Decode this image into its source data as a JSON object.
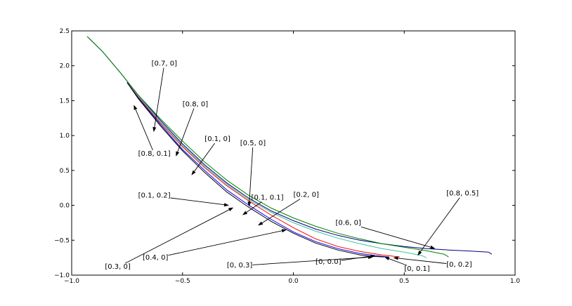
{
  "chart_data": {
    "type": "line",
    "title": "",
    "xlabel": "",
    "ylabel": "",
    "xlim": [
      -1.0,
      1.0
    ],
    "ylim": [
      -1.0,
      2.5
    ],
    "x_ticks": [
      -1.0,
      -0.5,
      0.0,
      0.5,
      1.0
    ],
    "x_tick_labels": [
      "−1.0",
      "−0.5",
      "0.0",
      "0.5",
      "1.0"
    ],
    "y_ticks": [
      -1.0,
      -0.5,
      0.0,
      0.5,
      1.0,
      1.5,
      2.0,
      2.5
    ],
    "y_tick_labels": [
      "−1.0",
      "−0.5",
      "0.0",
      "0.5",
      "1.0",
      "1.5",
      "2.0",
      "2.5"
    ],
    "grid": false,
    "series": [
      {
        "color": "#000080",
        "x": [
          -0.93,
          -0.86,
          -0.78,
          -0.7,
          -0.6,
          -0.5,
          -0.4,
          -0.3,
          -0.2,
          -0.1,
          0.0,
          0.1,
          0.2,
          0.3,
          0.4,
          0.5,
          0.6,
          0.7,
          0.8,
          0.88,
          0.895
        ],
        "y": [
          2.42,
          2.2,
          1.9,
          1.58,
          1.22,
          0.88,
          0.58,
          0.32,
          0.1,
          -0.08,
          -0.22,
          -0.34,
          -0.43,
          -0.5,
          -0.55,
          -0.59,
          -0.62,
          -0.64,
          -0.655,
          -0.67,
          -0.7
        ]
      },
      {
        "color": "#008000",
        "x": [
          -0.93,
          -0.86,
          -0.78,
          -0.7,
          -0.6,
          -0.5,
          -0.4,
          -0.3,
          -0.2,
          -0.1,
          0.0,
          0.1,
          0.2,
          0.3,
          0.4,
          0.5,
          0.6,
          0.68,
          0.7
        ],
        "y": [
          2.42,
          2.2,
          1.9,
          1.58,
          1.24,
          0.92,
          0.62,
          0.36,
          0.14,
          -0.04,
          -0.18,
          -0.3,
          -0.4,
          -0.48,
          -0.55,
          -0.6,
          -0.65,
          -0.7,
          -0.74
        ]
      },
      {
        "color": "#40c0a0",
        "x": [
          -0.75,
          -0.7,
          -0.6,
          -0.5,
          -0.4,
          -0.3,
          -0.2,
          -0.1,
          0.0,
          0.1,
          0.2,
          0.3,
          0.4,
          0.5,
          0.58,
          0.6
        ],
        "y": [
          1.76,
          1.56,
          1.2,
          0.86,
          0.56,
          0.3,
          0.08,
          -0.1,
          -0.25,
          -0.37,
          -0.47,
          -0.55,
          -0.62,
          -0.67,
          -0.72,
          -0.75
        ]
      },
      {
        "color": "#ff0000",
        "x": [
          -0.75,
          -0.7,
          -0.6,
          -0.5,
          -0.4,
          -0.3,
          -0.2,
          -0.1,
          0.0,
          0.1,
          0.2,
          0.3,
          0.4,
          0.48
        ],
        "y": [
          1.76,
          1.55,
          1.18,
          0.84,
          0.54,
          0.28,
          0.06,
          -0.14,
          -0.32,
          -0.48,
          -0.59,
          -0.66,
          -0.71,
          -0.74
        ]
      },
      {
        "color": "#0000ff",
        "x": [
          -0.75,
          -0.7,
          -0.6,
          -0.5,
          -0.4,
          -0.3,
          -0.2,
          -0.1,
          0.0,
          0.1,
          0.2,
          0.3,
          0.4,
          0.43
        ],
        "y": [
          1.76,
          1.54,
          1.16,
          0.8,
          0.5,
          0.22,
          0.0,
          -0.2,
          -0.38,
          -0.52,
          -0.62,
          -0.69,
          -0.73,
          -0.74
        ]
      },
      {
        "color": "#000000",
        "x": [
          -0.75,
          -0.7,
          -0.6,
          -0.5,
          -0.4,
          -0.3,
          -0.2,
          -0.1,
          0.0,
          0.1,
          0.2,
          0.3,
          0.35,
          0.41
        ],
        "y": [
          1.76,
          1.53,
          1.14,
          0.78,
          0.47,
          0.19,
          -0.03,
          -0.23,
          -0.4,
          -0.54,
          -0.64,
          -0.71,
          -0.73,
          -0.74
        ]
      }
    ],
    "annotations": [
      {
        "text": "[0.7, 0]",
        "label_x": -0.64,
        "label_y": 2.0,
        "tip_x": -0.63,
        "tip_y": 1.05
      },
      {
        "text": "[0.8, 0]",
        "label_x": -0.5,
        "label_y": 1.42,
        "tip_x": -0.53,
        "tip_y": 0.7
      },
      {
        "text": "[0.1, 0]",
        "label_x": -0.4,
        "label_y": 0.92,
        "tip_x": -0.46,
        "tip_y": 0.43
      },
      {
        "text": "[0.5, 0]",
        "label_x": -0.24,
        "label_y": 0.86,
        "tip_x": -0.2,
        "tip_y": -0.02
      },
      {
        "text": "[0.8, 0.1]",
        "label_x": -0.7,
        "label_y": 0.71,
        "tip_x": -0.72,
        "tip_y": 1.44
      },
      {
        "text": "[0.1, 0.2]",
        "label_x": -0.7,
        "label_y": 0.11,
        "tip_x": -0.29,
        "tip_y": 0.0
      },
      {
        "text": "[0.1, 0.1]",
        "label_x": -0.19,
        "label_y": 0.08,
        "tip_x": -0.23,
        "tip_y": -0.14
      },
      {
        "text": "[0.2, 0]",
        "label_x": 0.0,
        "label_y": 0.12,
        "tip_x": -0.16,
        "tip_y": -0.29
      },
      {
        "text": "[0.8, 0.5]",
        "label_x": 0.69,
        "label_y": 0.14,
        "tip_x": 0.56,
        "tip_y": -0.72
      },
      {
        "text": "[0.6, 0]",
        "label_x": 0.19,
        "label_y": -0.28,
        "tip_x": 0.64,
        "tip_y": -0.62
      },
      {
        "text": "[0.3, 0]",
        "label_x": -0.85,
        "label_y": -0.91,
        "tip_x": -0.27,
        "tip_y": -0.03
      },
      {
        "text": "[0.4, 0]",
        "label_x": -0.68,
        "label_y": -0.78,
        "tip_x": -0.03,
        "tip_y": -0.35
      },
      {
        "text": "[0, 0.3]",
        "label_x": -0.3,
        "label_y": -0.89,
        "tip_x": 0.36,
        "tip_y": -0.74
      },
      {
        "text": "[0, 0.0]",
        "label_x": 0.1,
        "label_y": -0.84,
        "tip_x": 0.37,
        "tip_y": -0.72
      },
      {
        "text": "[0, 0.1]",
        "label_x": 0.5,
        "label_y": -0.94,
        "tip_x": 0.41,
        "tip_y": -0.74
      },
      {
        "text": "[0, 0.2]",
        "label_x": 0.69,
        "label_y": -0.88,
        "tip_x": 0.45,
        "tip_y": -0.75
      }
    ]
  }
}
